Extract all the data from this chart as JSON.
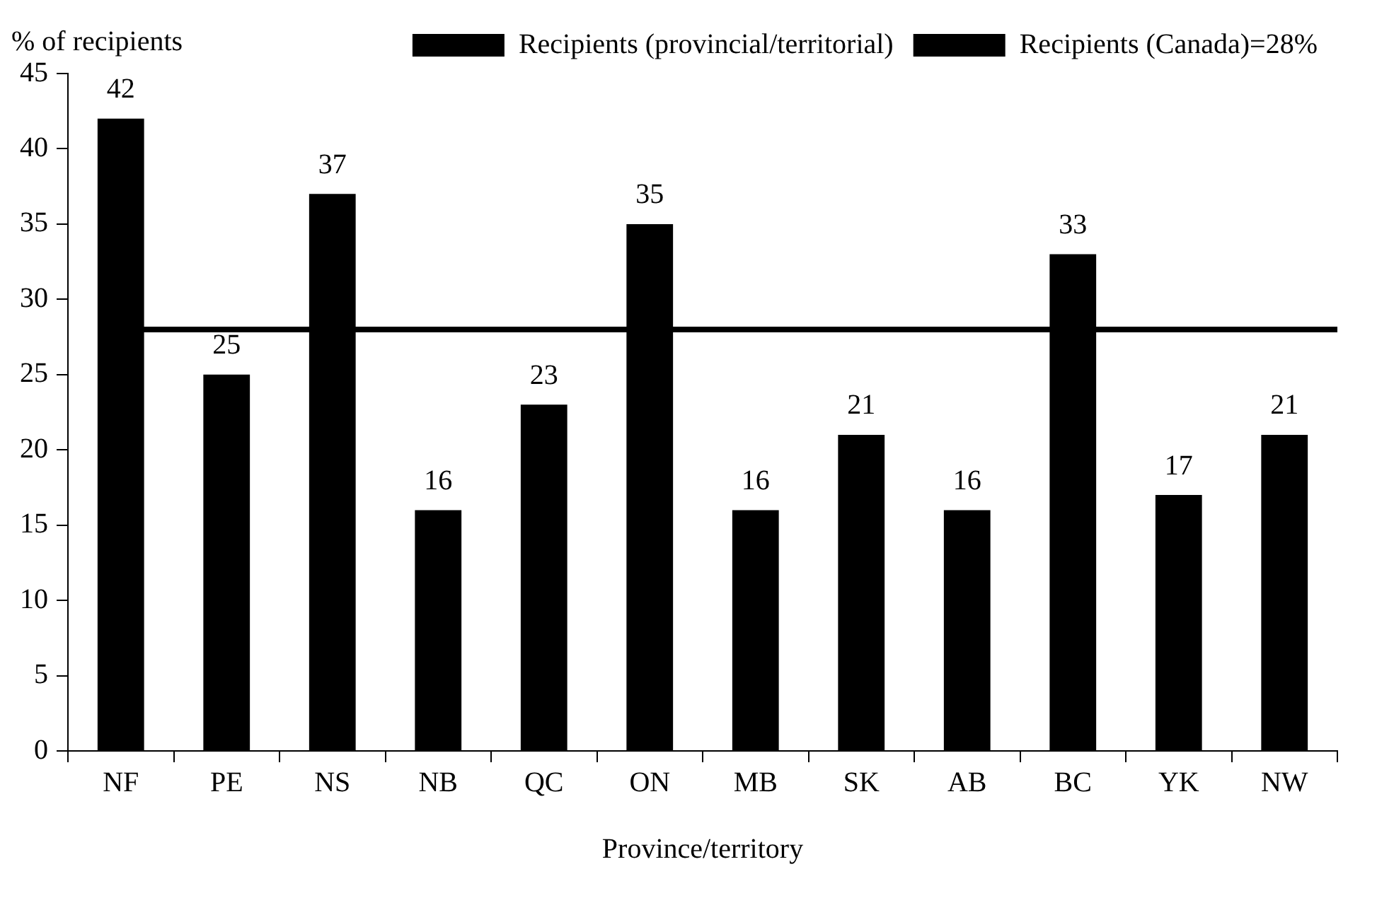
{
  "chart_data": {
    "type": "bar",
    "xlabel": "Province/territory",
    "ylabel": "% of recipients",
    "categories": [
      "NF",
      "PE",
      "NS",
      "NB",
      "QC",
      "ON",
      "MB",
      "SK",
      "AB",
      "BC",
      "YK",
      "NW"
    ],
    "series": [
      {
        "name": "Recipients (provincial/territorial)",
        "color": "#000000",
        "values": [
          42,
          25,
          37,
          16,
          23,
          35,
          16,
          21,
          16,
          33,
          17,
          21
        ],
        "value_labels": [
          "42",
          "25",
          "37",
          "16",
          "23",
          "35",
          "16",
          "21",
          "16",
          "33",
          "17",
          "21"
        ]
      }
    ],
    "ref_lines": [
      {
        "axis": "y",
        "value": 28,
        "label": "Recipients (Canada)=28%",
        "color": "#000000"
      }
    ],
    "ylim": [
      0,
      45
    ],
    "yticks": [
      0,
      5,
      10,
      15,
      20,
      25,
      30,
      35,
      40,
      45
    ],
    "grid": false,
    "legend": "top right"
  }
}
